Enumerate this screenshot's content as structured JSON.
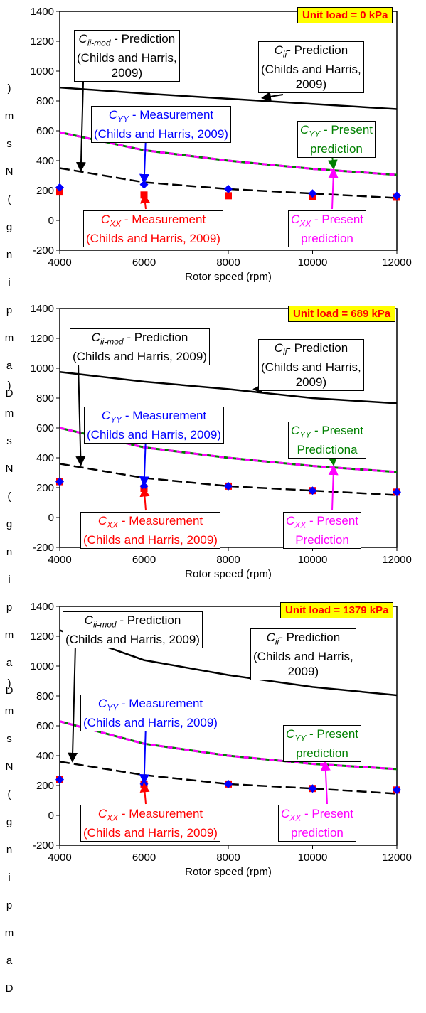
{
  "chart_data": [
    {
      "type": "line",
      "title": "Unit load = 0 kPa",
      "xlabel": "Rotor speed (rpm)",
      "ylabel": "Damping (N-s/m)",
      "ylabel_rendered": ")msN(gnipmaD",
      "xlim": [
        4000,
        12000
      ],
      "ylim": [
        -200,
        1400
      ],
      "xticks": [
        "4000",
        "6000",
        "8000",
        "10000",
        "12000"
      ],
      "yticks": [
        "-200",
        "0",
        "200",
        "400",
        "600",
        "800",
        "1000",
        "1200",
        "1400"
      ],
      "series": [
        {
          "name": "Cii - Prediction (Childs and Harris, 2009)",
          "style": "solid",
          "color": "#000000",
          "x": [
            4000,
            6000,
            8000,
            10000,
            12000
          ],
          "y": [
            890,
            850,
            815,
            780,
            745
          ]
        },
        {
          "name": "Cii-mod - Prediction (Childs and Harris, 2009)",
          "style": "dashed",
          "color": "#000000",
          "x": [
            4000,
            6000,
            8000,
            10000,
            12000
          ],
          "y": [
            350,
            255,
            210,
            180,
            150
          ]
        },
        {
          "name": "CYY - Present prediction",
          "style": "dashed-overlay",
          "color": "#008000",
          "x": [
            4000,
            6000,
            8000,
            10000,
            12000
          ],
          "y": [
            590,
            470,
            400,
            345,
            305
          ]
        },
        {
          "name": "CXX - Present prediction",
          "style": "dashed-overlay",
          "color": "#ff00ff",
          "x": [
            4000,
            6000,
            8000,
            10000,
            12000
          ],
          "y": [
            590,
            470,
            400,
            345,
            305
          ]
        },
        {
          "name": "CYY - Measurement (Childs and Harris, 2009)",
          "marker": "diamond",
          "color": "#0000ff",
          "x": [
            4000,
            6000,
            8000,
            10000,
            12000
          ],
          "y": [
            220,
            240,
            210,
            180,
            165
          ]
        },
        {
          "name": "CXX - Measurement (Childs and Harris, 2009)",
          "marker": "square",
          "color": "#ff0000",
          "x": [
            4000,
            6000,
            8000,
            10000,
            12000
          ],
          "y": [
            190,
            170,
            165,
            160,
            155
          ]
        }
      ]
    },
    {
      "type": "line",
      "title": "Unit load = 689 kPa",
      "xlabel": "Rotor speed (rpm)",
      "ylabel": "Damping (N-s/m)",
      "ylabel_rendered": ")msN(gnipmaD",
      "xlim": [
        4000,
        12000
      ],
      "ylim": [
        -200,
        1400
      ],
      "xticks": [
        "4000",
        "6000",
        "8000",
        "10000",
        "12000"
      ],
      "yticks": [
        "-200",
        "0",
        "200",
        "400",
        "600",
        "800",
        "1000",
        "1200",
        "1400"
      ],
      "series": [
        {
          "name": "Cii - Prediction (Childs and Harris, 2009)",
          "style": "solid",
          "color": "#000000",
          "x": [
            4000,
            6000,
            8000,
            10000,
            12000
          ],
          "y": [
            975,
            910,
            860,
            800,
            765
          ]
        },
        {
          "name": "Cii-mod - Prediction (Childs and Harris, 2009)",
          "style": "dashed",
          "color": "#000000",
          "x": [
            4000,
            6000,
            8000,
            10000,
            12000
          ],
          "y": [
            360,
            265,
            210,
            180,
            150
          ]
        },
        {
          "name": "CYY - Present Predictiona",
          "style": "dashed-overlay",
          "color": "#008000",
          "x": [
            4000,
            6000,
            8000,
            10000,
            12000
          ],
          "y": [
            600,
            470,
            400,
            345,
            305
          ]
        },
        {
          "name": "CXX - Present Prediction",
          "style": "dashed-overlay",
          "color": "#ff00ff",
          "x": [
            4000,
            6000,
            8000,
            10000,
            12000
          ],
          "y": [
            600,
            470,
            400,
            345,
            305
          ]
        },
        {
          "name": "CYY - Measurement (Childs and Harris, 2009)",
          "marker": "diamond",
          "color": "#0000ff",
          "x": [
            4000,
            6000,
            8000,
            10000,
            12000
          ],
          "y": [
            240,
            210,
            210,
            180,
            170
          ]
        },
        {
          "name": "CXX - Measurement (Childs and Harris, 2009)",
          "marker": "square",
          "color": "#ff0000",
          "x": [
            4000,
            6000,
            8000,
            10000,
            12000
          ],
          "y": [
            240,
            195,
            210,
            180,
            170
          ]
        }
      ]
    },
    {
      "type": "line",
      "title": "Unit load = 1379 kPa",
      "xlabel": "Rotor speed (rpm)",
      "ylabel": "Damping (N-s/m)",
      "ylabel_rendered": ")msN(gnipmaD",
      "xlim": [
        4000,
        12000
      ],
      "ylim": [
        -200,
        1400
      ],
      "xticks": [
        "4000",
        "6000",
        "8000",
        "10000",
        "12000"
      ],
      "yticks": [
        "-200",
        "0",
        "200",
        "400",
        "600",
        "800",
        "1000",
        "1200",
        "1400"
      ],
      "series": [
        {
          "name": "Cii - Prediction (Childs and Harris, 2009)",
          "style": "solid",
          "color": "#000000",
          "x": [
            4000,
            6000,
            8000,
            10000,
            12000
          ],
          "y": [
            1240,
            1040,
            940,
            860,
            805
          ]
        },
        {
          "name": "Cii-mod - Prediction (Childs and Harris, 2009)",
          "style": "dashed",
          "color": "#000000",
          "x": [
            4000,
            6000,
            8000,
            10000,
            12000
          ],
          "y": [
            360,
            270,
            210,
            180,
            145
          ]
        },
        {
          "name": "CYY - Present prediction",
          "style": "dashed-overlay",
          "color": "#008000",
          "x": [
            4000,
            6000,
            8000,
            10000,
            12000
          ],
          "y": [
            630,
            480,
            400,
            345,
            310
          ]
        },
        {
          "name": "CXX - Present prediction",
          "style": "dashed-overlay",
          "color": "#ff00ff",
          "x": [
            4000,
            6000,
            8000,
            10000,
            12000
          ],
          "y": [
            630,
            480,
            400,
            345,
            310
          ]
        },
        {
          "name": "CYY - Measurement (Childs and Harris, 2009)",
          "marker": "diamond",
          "color": "#0000ff",
          "x": [
            4000,
            6000,
            8000,
            10000,
            12000
          ],
          "y": [
            240,
            210,
            210,
            180,
            170
          ]
        },
        {
          "name": "CXX - Measurement (Childs and Harris, 2009)",
          "marker": "square",
          "color": "#ff0000",
          "x": [
            4000,
            6000,
            8000,
            10000,
            12000
          ],
          "y": [
            240,
            210,
            210,
            180,
            170
          ]
        }
      ]
    }
  ],
  "panels": [
    {
      "title": "Unit load = 0 kPa",
      "xlabel": "Rotor speed (rpm)",
      "ylabel_chars": [
        ")",
        "m",
        "s",
        "N",
        "(",
        "g",
        "n",
        "i",
        "p",
        "m",
        "a",
        "D"
      ],
      "ann": {
        "mod_sym": "C",
        "mod_sub": "ii-mod",
        "mod_l1": " - Prediction",
        "mod_l2": "(Childs and Harris,",
        "mod_l3": "2009)",
        "cii_sym": "C",
        "cii_sub": "ii",
        "cii_l1": "- Prediction",
        "cii_l2": "(Childs and Harris,",
        "cii_l3": "2009)",
        "cyym_sym": "C",
        "cyym_sub": "YY",
        "cyym_l1": " - Measurement",
        "cyym_l2": "(Childs and Harris, 2009)",
        "cyyp_sym": "C",
        "cyyp_sub": "YY",
        "cyyp_l1": " - Present",
        "cyyp_l2": "prediction",
        "cxxm_sym": "C",
        "cxxm_sub": "XX",
        "cxxm_l1": " - Measurement",
        "cxxm_l2": "(Childs and Harris, 2009)",
        "cxxp_sym": "C",
        "cxxp_sub": "XX",
        "cxxp_l1": " - Present",
        "cxxp_l2": "prediction"
      }
    },
    {
      "title": "Unit load = 689 kPa",
      "xlabel": "Rotor speed (rpm)",
      "ylabel_chars": [
        ")",
        "m",
        "s",
        "N",
        "(",
        "g",
        "n",
        "i",
        "p",
        "m",
        "a",
        "D"
      ],
      "ann": {
        "mod_sym": "C",
        "mod_sub": "ii-mod",
        "mod_l1": " - Prediction",
        "mod_l2": "(Childs and Harris, 2009)",
        "mod_l3": "",
        "cii_sym": "C",
        "cii_sub": "ii",
        "cii_l1": "- Prediction",
        "cii_l2": "(Childs and Harris,",
        "cii_l3": "2009)",
        "cyym_sym": "C",
        "cyym_sub": "YY",
        "cyym_l1": " - Measurement",
        "cyym_l2": "(Childs and Harris, 2009)",
        "cyyp_sym": "C",
        "cyyp_sub": "YY",
        "cyyp_l1": " - Present",
        "cyyp_l2": "Predictiona",
        "cxxm_sym": "C",
        "cxxm_sub": "XX",
        "cxxm_l1": " - Measurement",
        "cxxm_l2": "(Childs and Harris, 2009)",
        "cxxp_sym": "C",
        "cxxp_sub": "XX",
        "cxxp_l1": " - Present",
        "cxxp_l2": "Prediction"
      }
    },
    {
      "title": "Unit load = 1379 kPa",
      "xlabel": "Rotor speed (rpm)",
      "ylabel_chars": [
        ")",
        "m",
        "s",
        "N",
        "(",
        "g",
        "n",
        "i",
        "p",
        "m",
        "a",
        "D"
      ],
      "ann": {
        "mod_sym": "C",
        "mod_sub": "ii-mod",
        "mod_l1": " - Prediction",
        "mod_l2": "(Childs and Harris, 2009)",
        "mod_l3": "",
        "cii_sym": "C",
        "cii_sub": "ii",
        "cii_l1": "- Prediction",
        "cii_l2": "(Childs and Harris,",
        "cii_l3": "2009)",
        "cyym_sym": "C",
        "cyym_sub": "YY",
        "cyym_l1": " - Measurement",
        "cyym_l2": "(Childs and Harris, 2009)",
        "cyyp_sym": "C",
        "cyyp_sub": "YY",
        "cyyp_l1": " - Present",
        "cyyp_l2": "prediction",
        "cxxm_sym": "C",
        "cxxm_sub": "XX",
        "cxxm_l1": " - Measurement",
        "cxxm_l2": "(Childs and Harris, 2009)",
        "cxxp_sym": "C",
        "cxxp_sub": "XX",
        "cxxp_l1": " - Present",
        "cxxp_l2": "prediction"
      }
    }
  ]
}
